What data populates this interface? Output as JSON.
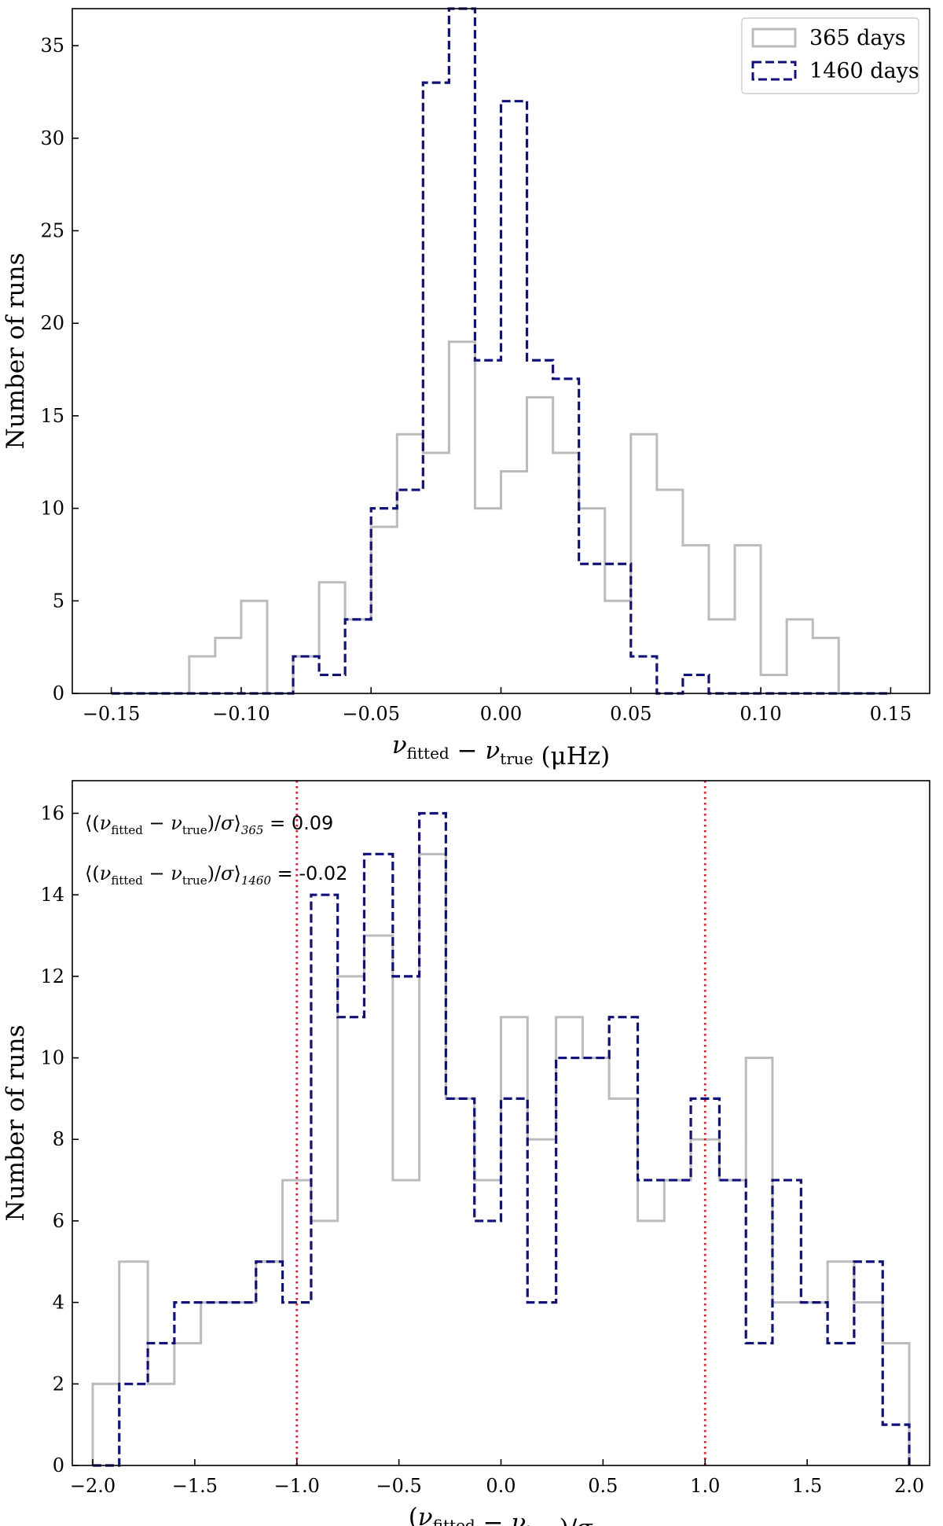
{
  "chart_data": [
    {
      "type": "histogram",
      "xlabel": "ν_fitted − ν_true (μHz)",
      "ylabel": "Number of runs",
      "xlim": [
        -0.165,
        0.165
      ],
      "ylim": [
        0,
        37
      ],
      "xticks": [
        -0.15,
        -0.1,
        -0.05,
        0.0,
        0.05,
        0.1,
        0.15
      ],
      "xtick_labels": [
        "−0.15",
        "−0.10",
        "−0.05",
        "0.00",
        "0.05",
        "0.10",
        "0.15"
      ],
      "yticks": [
        0,
        5,
        10,
        15,
        20,
        25,
        30,
        35
      ],
      "grid": false,
      "legend_position": "top-right",
      "series": [
        {
          "name": "365 days",
          "style": "solid",
          "color": "#bbbbbb",
          "bin_edges": [
            -0.15,
            -0.14,
            -0.13,
            -0.12,
            -0.11,
            -0.1,
            -0.09,
            -0.08,
            -0.07,
            -0.06,
            -0.05,
            -0.04,
            -0.03,
            -0.02,
            -0.01,
            0.0,
            0.01,
            0.02,
            0.03,
            0.04,
            0.05,
            0.06,
            0.07,
            0.08,
            0.09,
            0.1,
            0.11,
            0.12,
            0.13,
            0.14,
            0.15
          ],
          "counts": [
            0,
            0,
            0,
            2,
            3,
            5,
            0,
            2,
            6,
            4,
            9,
            14,
            13,
            19,
            10,
            12,
            16,
            13,
            10,
            5,
            14,
            11,
            8,
            4,
            8,
            1,
            4,
            3,
            0,
            0
          ]
        },
        {
          "name": "1460 days",
          "style": "dashed",
          "color": "#11117e",
          "bin_edges": [
            -0.15,
            -0.14,
            -0.13,
            -0.12,
            -0.11,
            -0.1,
            -0.09,
            -0.08,
            -0.07,
            -0.06,
            -0.05,
            -0.04,
            -0.03,
            -0.02,
            -0.01,
            0.0,
            0.01,
            0.02,
            0.03,
            0.04,
            0.05,
            0.06,
            0.07,
            0.08,
            0.09,
            0.1,
            0.11,
            0.12,
            0.13,
            0.14,
            0.15
          ],
          "counts": [
            0,
            0,
            0,
            0,
            0,
            0,
            0,
            2,
            1,
            4,
            10,
            11,
            33,
            37,
            18,
            32,
            18,
            17,
            7,
            7,
            2,
            0,
            1,
            0,
            0,
            0,
            0,
            0,
            0,
            0
          ]
        }
      ]
    },
    {
      "type": "histogram",
      "xlabel": "(ν_fitted − ν_true)/σ",
      "ylabel": "Number of runs",
      "xlim": [
        -2.1,
        2.1
      ],
      "ylim": [
        0,
        16.8
      ],
      "xticks": [
        -2.0,
        -1.5,
        -1.0,
        -0.5,
        0.0,
        0.5,
        1.0,
        1.5,
        2.0
      ],
      "xtick_labels": [
        "−2.0",
        "−1.5",
        "−1.0",
        "−0.5",
        "0.0",
        "0.5",
        "1.0",
        "1.5",
        "2.0"
      ],
      "yticks": [
        0,
        2,
        4,
        6,
        8,
        10,
        12,
        14,
        16
      ],
      "grid": false,
      "vlines": [
        -1.0,
        1.0
      ],
      "vline_color": "#e8192c",
      "annotations": [
        {
          "lhs": "⟨(ν_fitted − ν_true)/σ⟩_365",
          "value": "= 0.09"
        },
        {
          "lhs": "⟨(ν_fitted − ν_true)/σ⟩_1460",
          "value": "= -0.02"
        }
      ],
      "series": [
        {
          "name": "365 days",
          "style": "solid",
          "color": "#bbbbbb",
          "bin_edges": [
            -2.0,
            -1.87,
            -1.73,
            -1.6,
            -1.47,
            -1.33,
            -1.2,
            -1.07,
            -0.93,
            -0.8,
            -0.67,
            -0.53,
            -0.4,
            -0.27,
            -0.13,
            0.0,
            0.13,
            0.27,
            0.4,
            0.53,
            0.67,
            0.8,
            0.93,
            1.07,
            1.2,
            1.33,
            1.47,
            1.6,
            1.73,
            1.87,
            2.0
          ],
          "counts": [
            2,
            5,
            2,
            3,
            4,
            4,
            5,
            7,
            6,
            12,
            13,
            7,
            15,
            9,
            7,
            11,
            8,
            11,
            10,
            9,
            6,
            7,
            8,
            7,
            10,
            4,
            4,
            5,
            4,
            3
          ]
        },
        {
          "name": "1460 days",
          "style": "dashed",
          "color": "#11117e",
          "bin_edges": [
            -2.0,
            -1.87,
            -1.73,
            -1.6,
            -1.47,
            -1.33,
            -1.2,
            -1.07,
            -0.93,
            -0.8,
            -0.67,
            -0.53,
            -0.4,
            -0.27,
            -0.13,
            0.0,
            0.13,
            0.27,
            0.4,
            0.53,
            0.67,
            0.8,
            0.93,
            1.07,
            1.2,
            1.33,
            1.47,
            1.6,
            1.73,
            1.87,
            2.0
          ],
          "counts": [
            0,
            2,
            3,
            4,
            4,
            4,
            5,
            4,
            14,
            11,
            15,
            12,
            16,
            9,
            6,
            9,
            4,
            10,
            10,
            11,
            7,
            7,
            9,
            7,
            3,
            7,
            4,
            3,
            5,
            1
          ]
        }
      ]
    }
  ]
}
